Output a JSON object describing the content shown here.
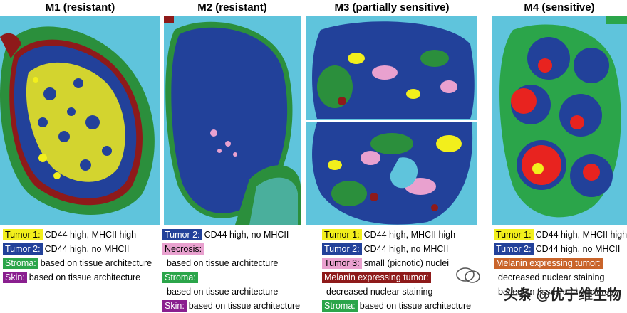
{
  "panels": [
    {
      "title": "M1 (resistant)",
      "legend": [
        {
          "tag": "Tumor 1:",
          "color": "yellow",
          "text": "CD44 high, MHCII high"
        },
        {
          "tag": "Tumor 2:",
          "color": "blue",
          "text": "CD44 high, no MHCII"
        },
        {
          "tag": "Stroma:",
          "color": "green",
          "text": "based on tissue architecture"
        },
        {
          "tag": "Skin:",
          "color": "purple",
          "text": "based on tissue architecture"
        }
      ]
    },
    {
      "title": "M2 (resistant)",
      "legend": [
        {
          "tag": "Tumor 2:",
          "color": "blue",
          "text": "CD44 high, no MHCII"
        },
        {
          "tag": "Necrosis:",
          "color": "pink",
          "text": ""
        },
        {
          "tag": "",
          "color": "",
          "text": "based on tissue architecture"
        },
        {
          "tag": "Stroma:",
          "color": "green",
          "text": ""
        },
        {
          "tag": "",
          "color": "",
          "text": "based on tissue architecture"
        },
        {
          "tag": "Skin:",
          "color": "purple",
          "text": "based on tissue architecture"
        }
      ]
    },
    {
      "title": "M3 (partially sensitive)",
      "legend": [
        {
          "tag": "Tumor 1:",
          "color": "yellow",
          "text": "CD44 high, MHCII high"
        },
        {
          "tag": "Tumor 2:",
          "color": "blue",
          "text": "CD44 high, no MHCII"
        },
        {
          "tag": "Tumor 3:",
          "color": "pink",
          "text": "small (picnotic) nuclei"
        },
        {
          "tag": "Melanin expressing tumor:",
          "color": "darkred",
          "text": ""
        },
        {
          "tag": "",
          "color": "",
          "text": "decreased nuclear staining"
        },
        {
          "tag": "Stroma:",
          "color": "green",
          "text": "based on tissue architecture"
        }
      ]
    },
    {
      "title": "M4 (sensitive)",
      "legend": [
        {
          "tag": "Tumor 1:",
          "color": "yellow",
          "text": "CD44 high, MHCII high"
        },
        {
          "tag": "Tumor 2:",
          "color": "blue",
          "text": "CD44 high, no MHCII"
        },
        {
          "tag": "Melanin expressing tumor:",
          "color": "orange",
          "text": ""
        },
        {
          "tag": "",
          "color": "",
          "text": "decreased nuclear staining"
        },
        {
          "tag": "",
          "color": "",
          "text": "based on tissue architecture"
        }
      ]
    }
  ],
  "watermark": {
    "text": "头条 @优宁维生物"
  }
}
